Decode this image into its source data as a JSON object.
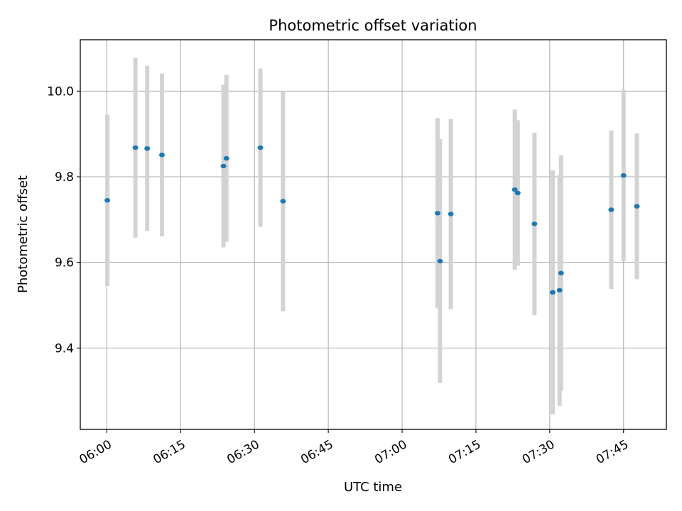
{
  "chart_data": {
    "type": "scatter",
    "title": "Photometric offset variation",
    "xlabel": "UTC time",
    "ylabel": "Photometric offset",
    "x_unit": "UTC time (HH:MM)",
    "xlim": [
      "05:54.6",
      "07:53.7"
    ],
    "ylim": [
      9.21,
      10.12
    ],
    "x_ticks": [
      "06:00",
      "06:15",
      "06:30",
      "06:45",
      "07:00",
      "07:15",
      "07:30",
      "07:45"
    ],
    "y_ticks": [
      9.4,
      9.6,
      9.8,
      10.0
    ],
    "grid": true,
    "colors": {
      "point": "#1f77b4",
      "errorbar": "#d3d3d3",
      "grid": "#b0b0b0"
    },
    "points": [
      {
        "x": "06:00.1",
        "y": 9.745,
        "err": 0.2
      },
      {
        "x": "06:05.8",
        "y": 9.868,
        "err": 0.21
      },
      {
        "x": "06:08.2",
        "y": 9.866,
        "err": 0.193
      },
      {
        "x": "06:11.2",
        "y": 9.851,
        "err": 0.19
      },
      {
        "x": "06:23.7",
        "y": 9.825,
        "err": 0.19
      },
      {
        "x": "06:24.3",
        "y": 9.843,
        "err": 0.195
      },
      {
        "x": "06:31.2",
        "y": 9.868,
        "err": 0.185
      },
      {
        "x": "06:35.8",
        "y": 9.743,
        "err": 0.257
      },
      {
        "x": "07:07.2",
        "y": 9.715,
        "err": 0.222
      },
      {
        "x": "07:07.7",
        "y": 9.603,
        "err": 0.285
      },
      {
        "x": "07:09.9",
        "y": 9.713,
        "err": 0.222
      },
      {
        "x": "07:22.9",
        "y": 9.77,
        "err": 0.187
      },
      {
        "x": "07:23.5",
        "y": 9.762,
        "err": 0.17
      },
      {
        "x": "07:26.9",
        "y": 9.69,
        "err": 0.213
      },
      {
        "x": "07:30.6",
        "y": 9.53,
        "err": 0.285
      },
      {
        "x": "07:32.0",
        "y": 9.535,
        "err": 0.27
      },
      {
        "x": "07:32.3",
        "y": 9.575,
        "err": 0.275
      },
      {
        "x": "07:42.5",
        "y": 9.723,
        "err": 0.185
      },
      {
        "x": "07:45.0",
        "y": 9.803,
        "err": 0.2
      },
      {
        "x": "07:47.7",
        "y": 9.731,
        "err": 0.17
      }
    ]
  }
}
